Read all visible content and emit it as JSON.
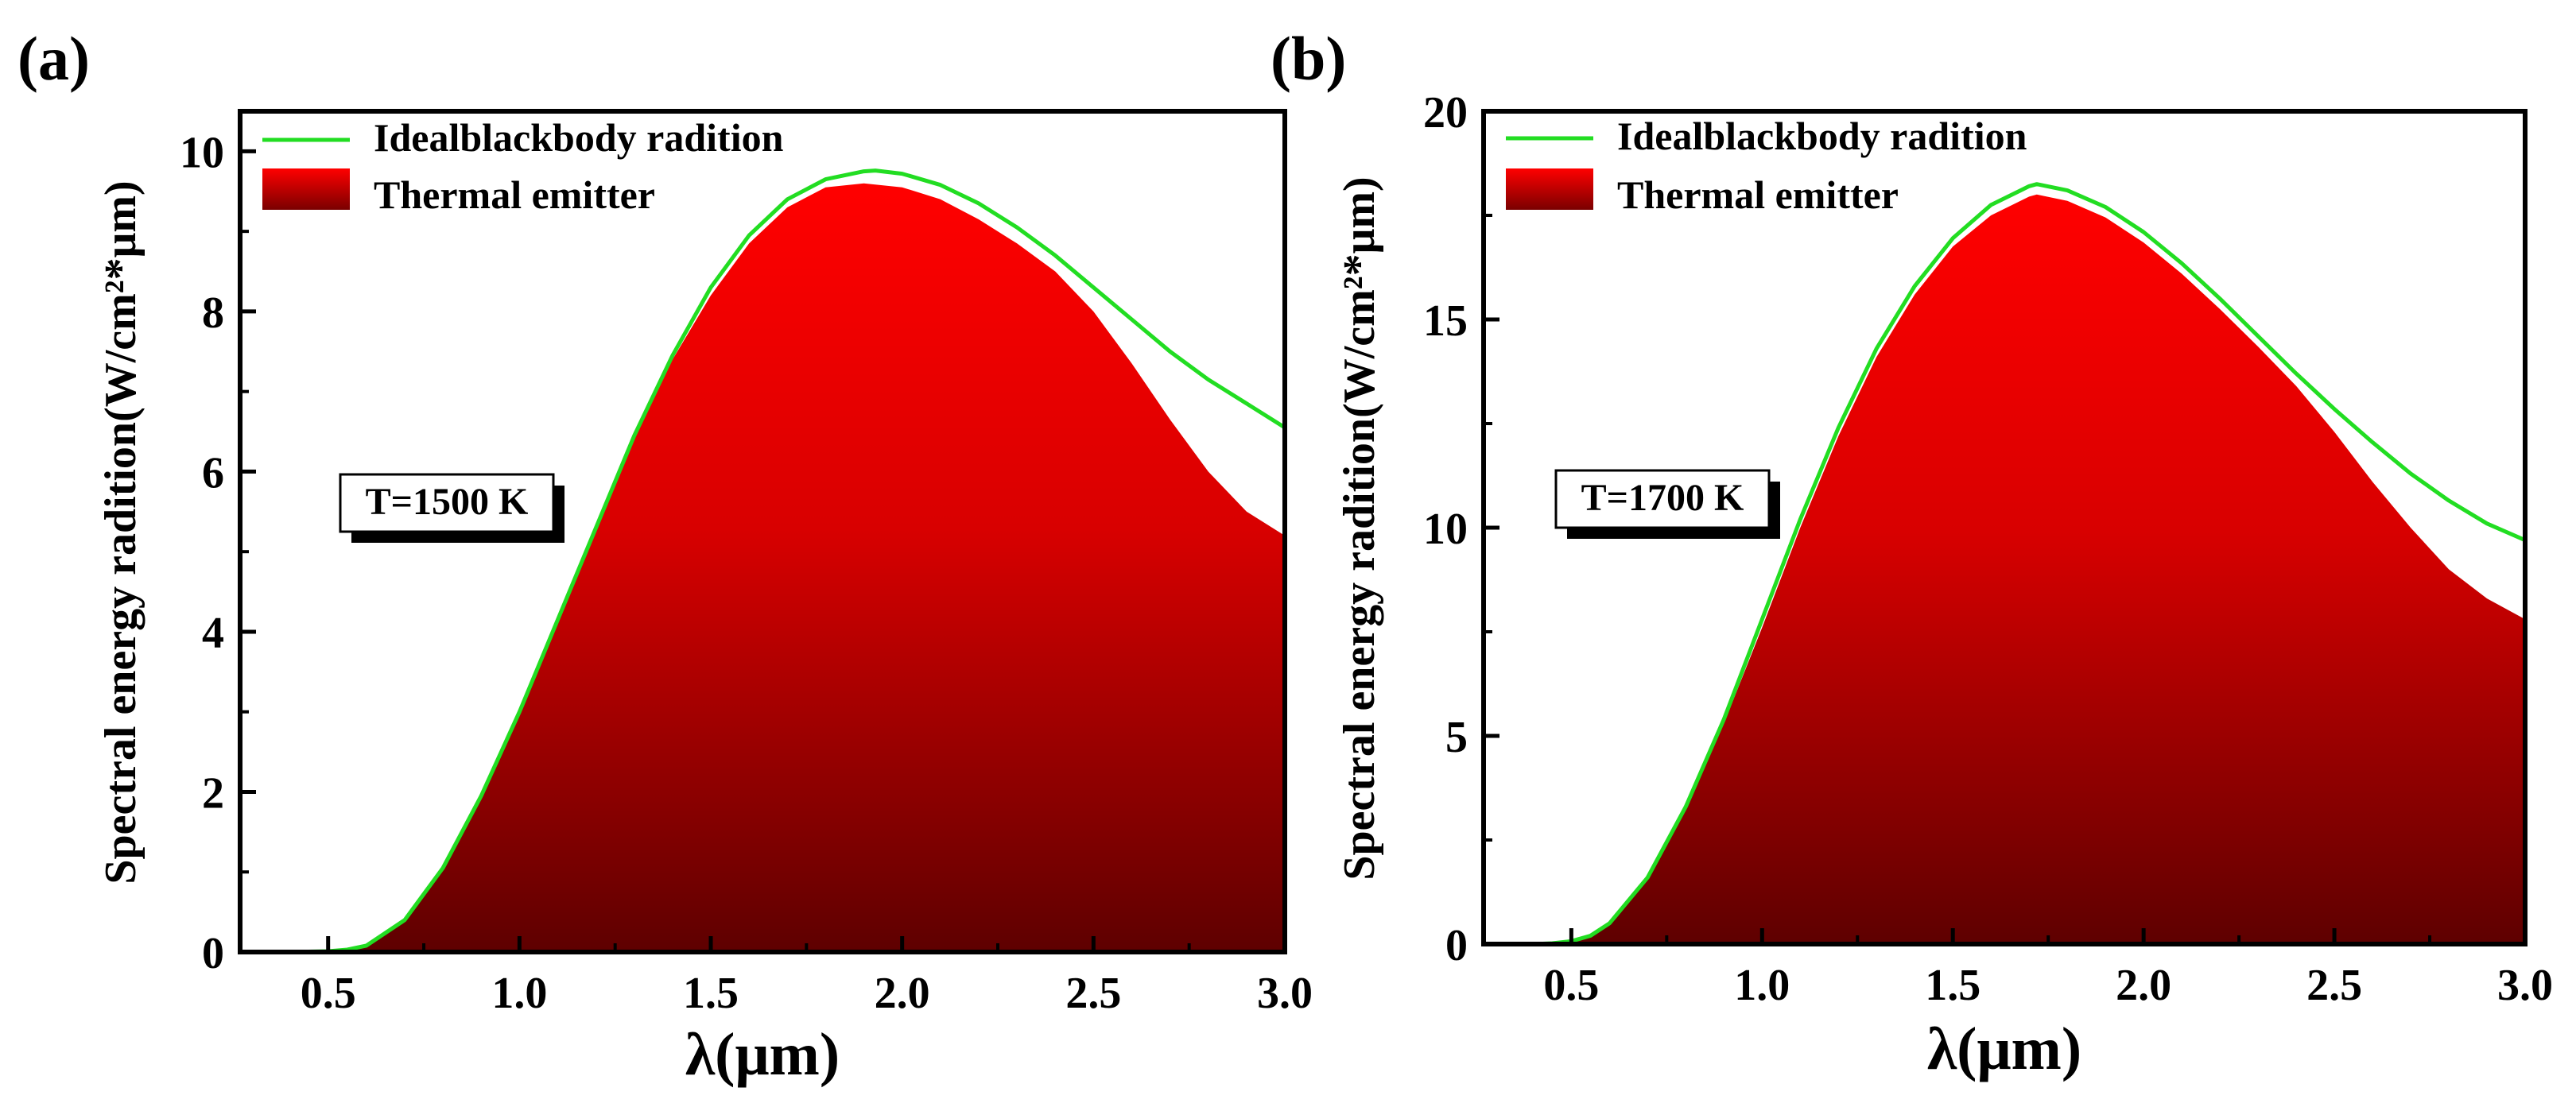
{
  "chart_data": [
    {
      "type": "area",
      "panel_label": "(a)",
      "temperature_label": "T=1500 K",
      "xlabel": "λ(μm)",
      "ylabel": "Spectral energy radition(W/cm²*μm)",
      "xlim": [
        0.27,
        3.0
      ],
      "ylim": [
        0,
        10.5
      ],
      "x_ticks": [
        "0.5",
        "1.0",
        "1.5",
        "2.0",
        "2.5",
        "3.0"
      ],
      "y_ticks": [
        "0",
        "2",
        "4",
        "6",
        "8",
        "10"
      ],
      "legend": [
        "Idealblackbody radition",
        "Thermal emitter"
      ],
      "series": [
        {
          "name": "Idealblackbody radition",
          "kind": "line",
          "color": "#22dd22",
          "x": [
            0.27,
            0.4,
            0.5,
            0.55,
            0.6,
            0.7,
            0.8,
            0.9,
            1.0,
            1.1,
            1.2,
            1.3,
            1.4,
            1.5,
            1.6,
            1.7,
            1.8,
            1.9,
            1.93,
            2.0,
            2.1,
            2.2,
            2.3,
            2.4,
            2.5,
            2.6,
            2.7,
            2.8,
            2.9,
            3.0
          ],
          "y": [
            0,
            0,
            0.01,
            0.03,
            0.08,
            0.4,
            1.05,
            1.95,
            3.0,
            4.15,
            5.3,
            6.45,
            7.45,
            8.3,
            8.95,
            9.4,
            9.65,
            9.75,
            9.76,
            9.72,
            9.58,
            9.35,
            9.05,
            8.7,
            8.3,
            7.9,
            7.5,
            7.15,
            6.85,
            6.55
          ]
        },
        {
          "name": "Thermal emitter",
          "kind": "area",
          "color_top": "#ff0000",
          "color_bottom": "#660000",
          "x": [
            0.27,
            0.4,
            0.5,
            0.55,
            0.6,
            0.7,
            0.8,
            0.9,
            1.0,
            1.1,
            1.2,
            1.3,
            1.4,
            1.5,
            1.6,
            1.7,
            1.8,
            1.9,
            2.0,
            2.1,
            2.2,
            2.3,
            2.4,
            2.5,
            2.6,
            2.7,
            2.8,
            2.9,
            3.0
          ],
          "y": [
            0,
            0,
            0.01,
            0.03,
            0.08,
            0.4,
            1.05,
            1.95,
            2.95,
            4.1,
            5.25,
            6.4,
            7.4,
            8.2,
            8.85,
            9.3,
            9.55,
            9.6,
            9.55,
            9.4,
            9.15,
            8.85,
            8.5,
            8.0,
            7.35,
            6.65,
            6.0,
            5.5,
            5.2
          ]
        }
      ]
    },
    {
      "type": "area",
      "panel_label": "(b)",
      "temperature_label": "T=1700 K",
      "xlabel": "λ(μm)",
      "ylabel": "Spectral energy radition(W/cm²*μm)",
      "xlim": [
        0.27,
        3.0
      ],
      "ylim": [
        0,
        20
      ],
      "x_ticks": [
        "0.5",
        "1.0",
        "1.5",
        "2.0",
        "2.5",
        "3.0"
      ],
      "y_ticks": [
        "0",
        "5",
        "10",
        "15",
        "20"
      ],
      "legend": [
        "Idealblackbody radition",
        "Thermal emitter"
      ],
      "series": [
        {
          "name": "Idealblackbody radition",
          "kind": "line",
          "color": "#22dd22",
          "x": [
            0.27,
            0.4,
            0.45,
            0.5,
            0.55,
            0.6,
            0.7,
            0.8,
            0.9,
            1.0,
            1.1,
            1.2,
            1.3,
            1.4,
            1.5,
            1.6,
            1.7,
            1.72,
            1.8,
            1.9,
            2.0,
            2.1,
            2.2,
            2.3,
            2.4,
            2.5,
            2.6,
            2.7,
            2.8,
            2.9,
            3.0
          ],
          "y": [
            0,
            0,
            0.02,
            0.07,
            0.2,
            0.5,
            1.6,
            3.3,
            5.4,
            7.8,
            10.2,
            12.4,
            14.3,
            15.8,
            16.95,
            17.75,
            18.2,
            18.25,
            18.1,
            17.7,
            17.1,
            16.35,
            15.5,
            14.6,
            13.7,
            12.85,
            12.05,
            11.3,
            10.65,
            10.1,
            9.7
          ]
        },
        {
          "name": "Thermal emitter",
          "kind": "area",
          "color_top": "#ff0000",
          "color_bottom": "#660000",
          "x": [
            0.27,
            0.4,
            0.45,
            0.5,
            0.55,
            0.6,
            0.7,
            0.8,
            0.9,
            1.0,
            1.1,
            1.2,
            1.3,
            1.4,
            1.5,
            1.6,
            1.7,
            1.72,
            1.8,
            1.9,
            2.0,
            2.1,
            2.2,
            2.3,
            2.4,
            2.5,
            2.6,
            2.7,
            2.8,
            2.9,
            3.0
          ],
          "y": [
            0,
            0,
            0.02,
            0.07,
            0.2,
            0.5,
            1.6,
            3.3,
            5.3,
            7.6,
            10.0,
            12.2,
            14.1,
            15.6,
            16.75,
            17.5,
            17.95,
            18.0,
            17.85,
            17.45,
            16.85,
            16.1,
            15.25,
            14.35,
            13.4,
            12.3,
            11.1,
            10.0,
            9.0,
            8.3,
            7.8
          ]
        }
      ]
    }
  ]
}
